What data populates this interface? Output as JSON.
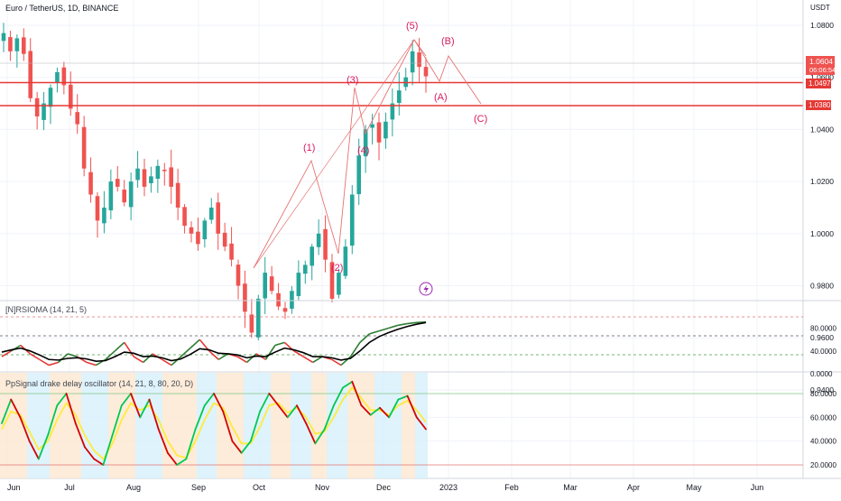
{
  "header": {
    "symbol_title": "Euro / TetherUS, 1D, BINANCE",
    "currency": "USDT"
  },
  "price_pane": {
    "y_ticks": [
      "1.0800",
      "1.0600",
      "1.0400",
      "1.0200",
      "1.0000",
      "0.9800",
      "0.9600",
      "0.9400"
    ],
    "last_price": "1.0604",
    "countdown": "06:06:54",
    "level_upper": "1.0497",
    "level_lower": "1.0380",
    "level_upper_value": 1.0497,
    "level_lower_value": 1.038,
    "wave_labels": [
      "(1)",
      "(2)",
      "(3)",
      "(4)",
      "(5)",
      "(A)",
      "(B)",
      "(C)"
    ]
  },
  "rsioma_pane": {
    "title": "[N]RSIOMA (14, 21, 5)",
    "y_ticks": [
      "80.0000",
      "40.0000",
      "0.0000"
    ]
  },
  "osc_pane": {
    "title": "PpSignal drake delay oscillator (14, 21, 8, 80, 20, D)",
    "y_ticks": [
      "80.0000",
      "60.0000",
      "40.0000",
      "20.0000"
    ]
  },
  "x_axis": {
    "labels": [
      "Jun",
      "Jul",
      "Aug",
      "Sep",
      "Oct",
      "Nov",
      "Dec",
      "2023",
      "Feb",
      "Mar",
      "Apr",
      "May",
      "Jun"
    ]
  },
  "colors": {
    "up": "#26a69a",
    "down": "#ef5350",
    "level_line": "#e53935",
    "wave": "#e57373",
    "wave_label": "#d81b60",
    "rsi_fast": "#2e7d32",
    "rsi_slow": "#000000",
    "osc_up": "#00c853",
    "osc_down": "#d50000",
    "osc_signal": "#ffeb3b",
    "bg_blue": "#d6f0fb",
    "bg_orange": "#fde7cf"
  },
  "chart_data": {
    "type": "candlestick",
    "timeframe": "1D",
    "y_range": [
      0.94,
      1.085
    ],
    "closes": [
      1.077,
      1.07,
      1.075,
      1.069,
      1.052,
      1.045,
      1.05,
      1.056,
      1.062,
      1.057,
      1.048,
      1.042,
      1.025,
      1.015,
      1.005,
      1.01,
      1.02,
      1.018,
      1.012,
      1.02,
      1.025,
      1.018,
      1.022,
      1.026,
      1.024,
      1.018,
      1.01,
      1.003,
      1.0,
      0.996,
      1.005,
      1.01,
      1.0,
      0.995,
      0.99,
      0.98,
      0.97,
      0.962,
      0.975,
      0.985,
      0.978,
      0.972,
      0.97,
      0.978,
      0.985,
      0.988,
      0.995,
      1.0,
      0.99,
      0.975,
      0.985,
      0.995,
      1.015,
      1.03,
      1.04,
      1.042,
      1.035,
      1.043,
      1.05,
      1.055,
      1.06,
      1.07,
      1.064,
      1.0604
    ],
    "rsioma_fast": [
      30,
      40,
      50,
      35,
      25,
      15,
      20,
      35,
      30,
      20,
      15,
      25,
      40,
      55,
      30,
      20,
      35,
      25,
      15,
      30,
      45,
      60,
      40,
      25,
      35,
      30,
      20,
      35,
      25,
      50,
      55,
      40,
      30,
      20,
      30,
      25,
      15,
      30,
      55,
      70,
      75,
      80,
      85,
      88,
      90,
      91
    ],
    "rsioma_slow": [
      38,
      42,
      45,
      40,
      33,
      25,
      24,
      27,
      28,
      26,
      22,
      23,
      30,
      38,
      36,
      30,
      31,
      28,
      23,
      26,
      34,
      44,
      42,
      36,
      35,
      33,
      28,
      31,
      30,
      38,
      45,
      42,
      37,
      30,
      30,
      28,
      24,
      27,
      40,
      55,
      65,
      72,
      78,
      83,
      87,
      90
    ],
    "oscillator": [
      55,
      75,
      60,
      40,
      25,
      45,
      70,
      80,
      55,
      35,
      25,
      20,
      45,
      70,
      80,
      60,
      75,
      50,
      30,
      20,
      25,
      50,
      70,
      80,
      65,
      40,
      30,
      40,
      65,
      80,
      70,
      60,
      70,
      55,
      38,
      50,
      70,
      85,
      90,
      70,
      62,
      68,
      60,
      75,
      78,
      60,
      50
    ],
    "oscillator_signal": [
      50,
      65,
      62,
      48,
      33,
      40,
      58,
      72,
      62,
      45,
      32,
      25,
      38,
      58,
      72,
      66,
      70,
      58,
      40,
      28,
      26,
      40,
      58,
      72,
      68,
      52,
      38,
      38,
      52,
      70,
      72,
      64,
      68,
      60,
      46,
      48,
      60,
      75,
      85,
      76,
      66,
      66,
      62,
      70,
      74,
      66,
      56
    ],
    "oscillator_levels": [
      80,
      20
    ]
  }
}
